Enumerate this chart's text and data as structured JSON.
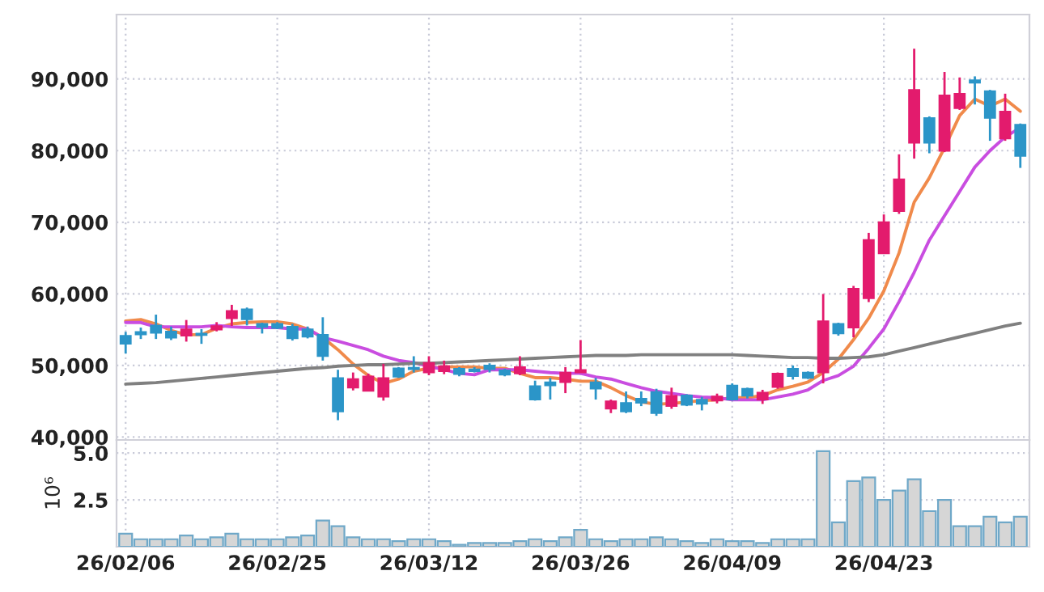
{
  "chart_data": [
    {
      "type": "candlestick",
      "ohlc": [
        [
          54160,
          54690,
          51660,
          53020
        ],
        [
          54690,
          55290,
          53700,
          54310
        ],
        [
          55590,
          57100,
          53700,
          54540
        ],
        [
          54760,
          55440,
          53550,
          53860
        ],
        [
          54160,
          56350,
          53330,
          55070
        ],
        [
          54460,
          55070,
          53020,
          54230
        ],
        [
          55000,
          56050,
          54760,
          55520
        ],
        [
          56580,
          58470,
          55520,
          57640
        ],
        [
          57860,
          58090,
          55590,
          56430
        ],
        [
          55820,
          55970,
          54460,
          55370
        ],
        [
          55820,
          56050,
          55070,
          55220
        ],
        [
          55440,
          55820,
          53480,
          53780
        ],
        [
          55070,
          55440,
          53780,
          54010
        ],
        [
          54310,
          56730,
          50680,
          51290
        ],
        [
          48260,
          49400,
          42360,
          43570
        ],
        [
          46900,
          49020,
          46520,
          48110
        ],
        [
          46450,
          48870,
          46450,
          48490
        ],
        [
          45620,
          50230,
          45090,
          48260
        ],
        [
          49620,
          49770,
          48260,
          48410
        ],
        [
          49700,
          51290,
          49020,
          49470
        ],
        [
          49020,
          51290,
          48640,
          50380
        ],
        [
          49170,
          50680,
          48790,
          49920
        ],
        [
          49550,
          49770,
          48490,
          48790
        ],
        [
          49470,
          49770,
          49020,
          49170
        ],
        [
          50000,
          50300,
          49020,
          49470
        ],
        [
          49320,
          49550,
          48490,
          48710
        ],
        [
          48870,
          51290,
          48640,
          49770
        ],
        [
          47130,
          47880,
          45090,
          45240
        ],
        [
          47660,
          48260,
          45240,
          47200
        ],
        [
          47660,
          49770,
          46140,
          49020
        ],
        [
          49020,
          53550,
          49020,
          49400
        ],
        [
          47660,
          48260,
          45240,
          46750
        ],
        [
          43950,
          45240,
          43350,
          45010
        ],
        [
          44780,
          46370,
          43350,
          43570
        ],
        [
          45390,
          46370,
          44330,
          44780
        ],
        [
          46300,
          46750,
          42970,
          43350
        ],
        [
          44330,
          46900,
          43950,
          45770
        ],
        [
          45840,
          45990,
          44330,
          44480
        ],
        [
          45240,
          45620,
          43730,
          44630
        ],
        [
          45090,
          46070,
          44710,
          45690
        ],
        [
          47200,
          47500,
          45090,
          45240
        ],
        [
          46750,
          46900,
          45390,
          45770
        ],
        [
          45240,
          46600,
          44630,
          46220
        ],
        [
          46980,
          49020,
          46750,
          48870
        ],
        [
          49550,
          50000,
          48030,
          48490
        ],
        [
          49020,
          49170,
          48110,
          48260
        ],
        [
          49020,
          59980,
          47500,
          56200
        ],
        [
          55820,
          55970,
          54160,
          54460
        ],
        [
          55290,
          61110,
          53930,
          60730
        ],
        [
          59370,
          68520,
          58850,
          67540
        ],
        [
          65650,
          71090,
          65650,
          70030
        ],
        [
          71550,
          79480,
          71170,
          76010
        ],
        [
          81070,
          94230,
          78880,
          88480
        ],
        [
          84550,
          84780,
          79630,
          81070
        ],
        [
          79940,
          90980,
          79790,
          87720
        ],
        [
          85910,
          90220,
          85680,
          87950
        ],
        [
          89840,
          90370,
          86440,
          89460
        ],
        [
          88330,
          88480,
          81370,
          84550
        ],
        [
          81680,
          87950,
          81370,
          85460
        ],
        [
          83640,
          83790,
          77590,
          79260
        ]
      ],
      "colors": [
        "#2b95c8",
        "#2b95c8",
        "#2b95c8",
        "#2b95c8",
        "#e31b6d",
        "#2b95c8",
        "#e31b6d",
        "#e31b6d",
        "#2b95c8",
        "#2b95c8",
        "#2b95c8",
        "#2b95c8",
        "#2b95c8",
        "#2b95c8",
        "#2b95c8",
        "#e31b6d",
        "#e31b6d",
        "#e31b6d",
        "#2b95c8",
        "#2b95c8",
        "#e31b6d",
        "#e31b6d",
        "#2b95c8",
        "#2b95c8",
        "#2b95c8",
        "#2b95c8",
        "#e31b6d",
        "#2b95c8",
        "#2b95c8",
        "#e31b6d",
        "#e31b6d",
        "#2b95c8",
        "#e31b6d",
        "#2b95c8",
        "#2b95c8",
        "#2b95c8",
        "#e31b6d",
        "#2b95c8",
        "#2b95c8",
        "#e31b6d",
        "#2b95c8",
        "#2b95c8",
        "#e31b6d",
        "#e31b6d",
        "#2b95c8",
        "#2b95c8",
        "#e31b6d",
        "#2b95c8",
        "#e31b6d",
        "#e31b6d",
        "#e31b6d",
        "#e31b6d",
        "#e31b6d",
        "#2b95c8",
        "#e31b6d",
        "#e31b6d",
        "#2b95c8",
        "#2b95c8",
        "#e31b6d",
        "#2b95c8"
      ],
      "series": [
        {
          "type": "line",
          "color": "#f08a4b",
          "values": [
            56200,
            56400,
            55800,
            54900,
            54300,
            54300,
            55200,
            55800,
            56000,
            56100,
            56100,
            55800,
            55100,
            53900,
            52200,
            50200,
            48600,
            47500,
            48100,
            49200,
            49600,
            49800,
            49800,
            49800,
            49600,
            49600,
            48900,
            48300,
            48300,
            48100,
            47800,
            47800,
            46900,
            45800,
            44900,
            44600,
            44700,
            44900,
            45100,
            45200,
            45500,
            45500,
            45800,
            46600,
            47100,
            47700,
            49000,
            50900,
            53600,
            56600,
            60400,
            65700,
            72800,
            76200,
            80400,
            84900,
            87200,
            86200,
            87200,
            85500
          ]
        },
        {
          "type": "line",
          "color": "#c94de0",
          "values": [
            56000,
            56000,
            55400,
            55400,
            55400,
            55400,
            55600,
            55400,
            55300,
            55300,
            55300,
            55100,
            55100,
            53900,
            53400,
            52800,
            52200,
            51300,
            50700,
            50400,
            49900,
            49400,
            48900,
            48700,
            49400,
            49400,
            49400,
            49200,
            49000,
            48900,
            48900,
            48400,
            48100,
            47500,
            46900,
            46400,
            46100,
            45800,
            45600,
            45500,
            45200,
            45200,
            45200,
            45600,
            46000,
            46600,
            47900,
            48600,
            49900,
            52400,
            55100,
            58900,
            63000,
            67500,
            70900,
            74300,
            77700,
            80000,
            81900,
            83200
          ]
        },
        {
          "type": "line",
          "color": "#808080",
          "values": [
            47400,
            47500,
            47600,
            47800,
            48000,
            48200,
            48400,
            48600,
            48800,
            49000,
            49200,
            49400,
            49600,
            49700,
            49900,
            50000,
            50100,
            50100,
            50200,
            50300,
            50300,
            50400,
            50500,
            50600,
            50700,
            50800,
            50900,
            51000,
            51100,
            51200,
            51300,
            51400,
            51400,
            51400,
            51500,
            51500,
            51500,
            51500,
            51500,
            51500,
            51500,
            51400,
            51300,
            51200,
            51100,
            51100,
            51000,
            51000,
            51100,
            51200,
            51500,
            52000,
            52500,
            53000,
            53500,
            54000,
            54500,
            55000,
            55500,
            55900
          ]
        }
      ],
      "ylim": [
        39600,
        99000
      ],
      "yticks": [
        {
          "value": 40000,
          "label": "40,000"
        },
        {
          "value": 50000,
          "label": "50,000"
        },
        {
          "value": 60000,
          "label": "60,000"
        },
        {
          "value": 70000,
          "label": "70,000"
        },
        {
          "value": 80000,
          "label": "80,000"
        },
        {
          "value": 90000,
          "label": "90,000"
        }
      ],
      "grid": true,
      "tick_labels": "y"
    },
    {
      "type": "bar",
      "categories": [
        "26/02/06",
        null,
        null,
        null,
        null,
        null,
        null,
        null,
        null,
        null,
        "26/02/25",
        null,
        null,
        null,
        null,
        null,
        null,
        null,
        null,
        null,
        "26/03/12",
        null,
        null,
        null,
        null,
        null,
        null,
        null,
        null,
        null,
        "26/03/26",
        null,
        null,
        null,
        null,
        null,
        null,
        null,
        null,
        null,
        "26/04/09",
        null,
        null,
        null,
        null,
        null,
        null,
        null,
        null,
        null,
        "26/04/23",
        null,
        null,
        null,
        null,
        null,
        null,
        null,
        null,
        null
      ],
      "values": [
        0.7,
        0.4,
        0.4,
        0.4,
        0.6,
        0.4,
        0.5,
        0.7,
        0.4,
        0.4,
        0.4,
        0.5,
        0.6,
        1.4,
        1.1,
        0.5,
        0.4,
        0.4,
        0.3,
        0.4,
        0.4,
        0.3,
        0.1,
        0.2,
        0.2,
        0.2,
        0.3,
        0.4,
        0.3,
        0.5,
        0.9,
        0.4,
        0.3,
        0.4,
        0.4,
        0.5,
        0.4,
        0.3,
        0.2,
        0.4,
        0.3,
        0.3,
        0.2,
        0.4,
        0.4,
        0.4,
        5.1,
        1.3,
        3.5,
        3.7,
        2.5,
        3.0,
        3.6,
        1.9,
        2.5,
        1.1,
        1.1,
        1.6,
        1.3,
        1.6
      ],
      "color": "#d6d6d6",
      "ylabel": "10⁶",
      "ylim": [
        0,
        5.7
      ],
      "yticks": [
        2.5,
        {
          "value": 5,
          "label": "5.0"
        }
      ],
      "grid": true
    }
  ]
}
